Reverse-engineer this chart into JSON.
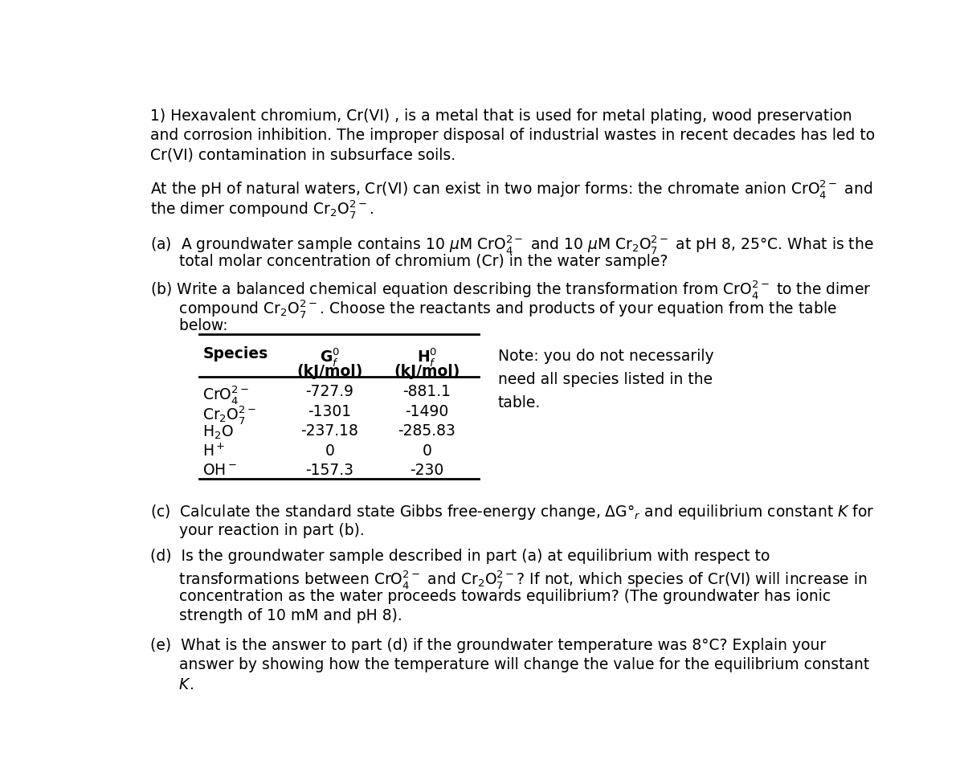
{
  "bg_color": "#ffffff",
  "text_color": "#000000",
  "font_size": 13.5,
  "fig_width": 12.0,
  "fig_height": 9.66,
  "table": {
    "rows": [
      [
        "CrO$_4^{2-}$",
        "-727.9",
        "-881.1"
      ],
      [
        "Cr$_2$O$_7^{2-}$",
        "-1301",
        "-1490"
      ],
      [
        "H$_2$O",
        "-237.18",
        "-285.83"
      ],
      [
        "H$^+$",
        "0",
        "0"
      ],
      [
        "OH$^-$",
        "-157.3",
        "-230"
      ]
    ],
    "note": "Note: you do not necessarily\nneed all species listed in the\ntable."
  }
}
